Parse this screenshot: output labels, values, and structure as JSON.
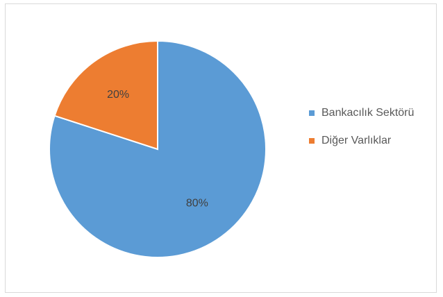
{
  "chart_data": {
    "type": "pie",
    "title": "",
    "categories": [
      "Bankacılık Sektörü",
      "Diğer Varlıklar"
    ],
    "values": [
      80,
      20
    ],
    "data_labels": [
      "80%",
      "20%"
    ],
    "colors": [
      "#5b9bd5",
      "#ed7d31"
    ],
    "legend": {
      "position": "right",
      "items": [
        {
          "label": "Bankacılık Sektörü",
          "color": "#5b9bd5"
        },
        {
          "label": "Diğer Varlıklar",
          "color": "#ed7d31"
        }
      ]
    }
  }
}
